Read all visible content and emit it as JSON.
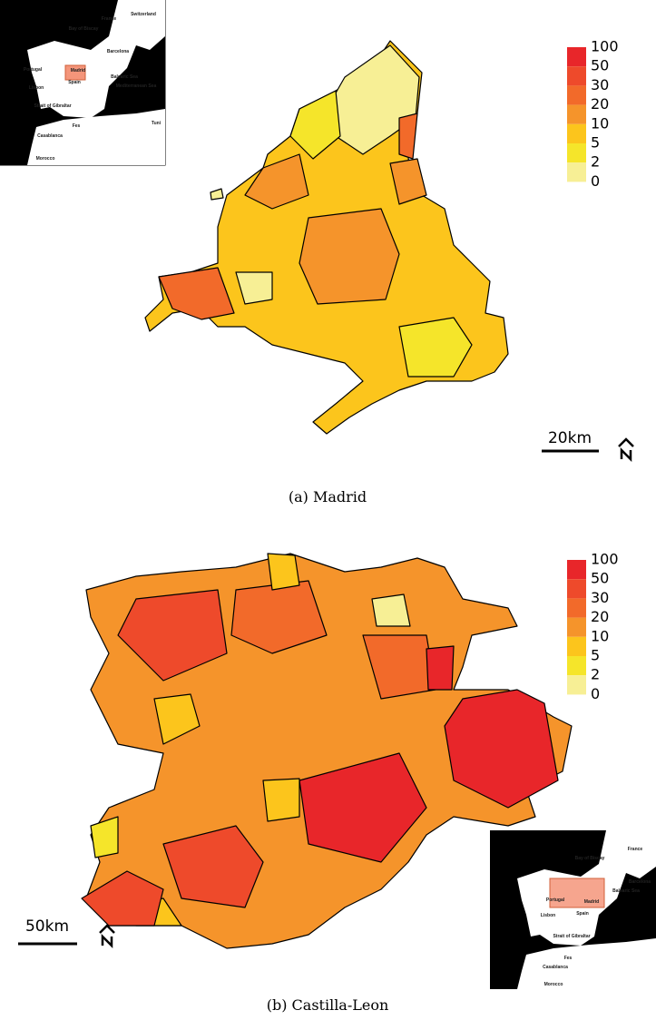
{
  "panels": [
    {
      "caption": "(a) Madrid",
      "legend": {
        "labels": [
          "100",
          "50",
          "30",
          "20",
          "10",
          "5",
          "2",
          "0"
        ],
        "colors": [
          "#e8262a",
          "#ee4a2b",
          "#f26a2a",
          "#f5942b",
          "#fcc51c",
          "#f5e52a",
          "#f7ef95"
        ]
      },
      "scale_label": "20km",
      "inset_labels": [
        "France",
        "Switzerland",
        "Bay of Biscay",
        "Portugal",
        "Madrid",
        "Spain",
        "Barcelona",
        "Balearic Sea",
        "Mediterranean Sea",
        "Lisbon",
        "Strait of Gibraltar",
        "Fes",
        "Casablanca",
        "Morocco",
        "Tuni"
      ]
    },
    {
      "caption": "(b) Castilla-Leon",
      "legend": {
        "labels": [
          "100",
          "50",
          "30",
          "20",
          "10",
          "5",
          "2",
          "0"
        ],
        "colors": [
          "#e8262a",
          "#ee4a2b",
          "#f26a2a",
          "#f5942b",
          "#fcc51c",
          "#f5e52a",
          "#f7ef95"
        ]
      },
      "scale_label": "50km",
      "inset_labels": [
        "France",
        "Bay of Biscay",
        "Portugal",
        "Madrid",
        "Spain",
        "Barcelona",
        "Balearic Sea",
        "Lisbon",
        "Strait of Gibraltar",
        "Fes",
        "Casablanca",
        "Morocco"
      ]
    }
  ]
}
